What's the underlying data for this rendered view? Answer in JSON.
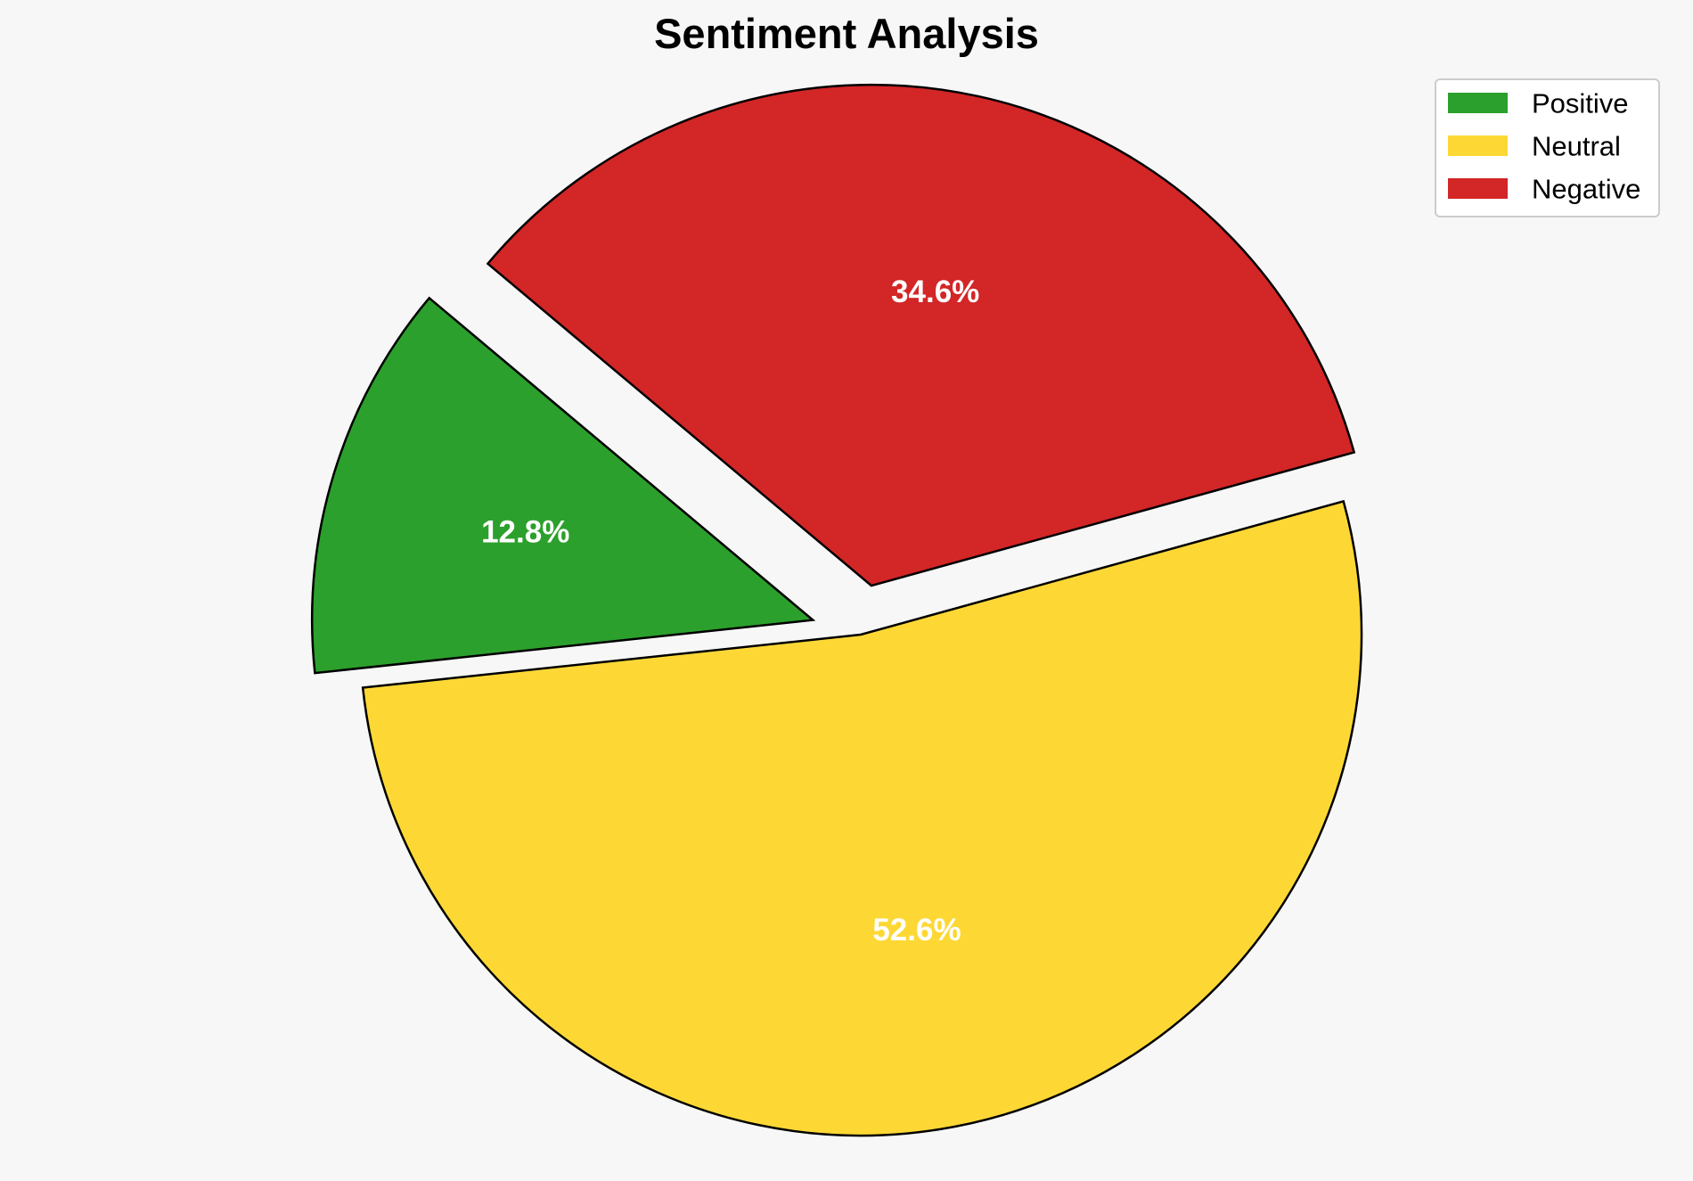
{
  "chart_data": {
    "type": "pie",
    "title": "Sentiment Analysis",
    "categories": [
      "Positive",
      "Neutral",
      "Negative"
    ],
    "values": [
      12.8,
      52.6,
      34.6
    ],
    "labels": [
      "12.8%",
      "52.6%",
      "34.6%"
    ],
    "colors": [
      "#2ca02c",
      "#fdd835",
      "#d32627"
    ],
    "exploded": [
      true,
      false,
      true
    ],
    "legend_position": "top-right",
    "edge_color": "#000000",
    "background": "#f7f7f7"
  }
}
